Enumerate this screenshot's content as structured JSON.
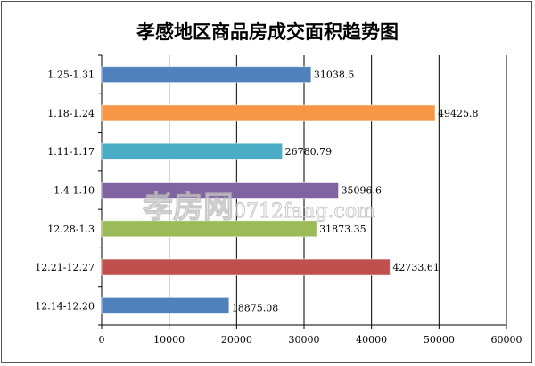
{
  "chart_data": {
    "type": "bar",
    "orientation": "horizontal",
    "title": "孝感地区商品房成交面积趋势图",
    "categories": [
      "1.25-1.31",
      "1.18-1.24",
      "1.11-1.17",
      "1.4-1.10",
      "12.28-1.3",
      "12.21-12.27",
      "12.14-12.20"
    ],
    "values": [
      31038.5,
      49425.8,
      26780.79,
      35096.6,
      31873.35,
      42733.61,
      18875.08
    ],
    "value_labels": [
      "31038.5",
      "49425.8",
      "26780.79",
      "35096.6",
      "31873.35",
      "42733.61",
      "18875.08"
    ],
    "colors": [
      "#4f81bd",
      "#f79646",
      "#4bacc6",
      "#8064a2",
      "#9bbb59",
      "#c0504d",
      "#4f81bd"
    ],
    "xticks": [
      "0",
      "10000",
      "20000",
      "30000",
      "40000",
      "50000",
      "60000"
    ],
    "xlim": [
      0,
      60000
    ],
    "xlabel": "",
    "ylabel": "",
    "grid": true,
    "legend": "none"
  },
  "watermark": {
    "cn": "孝房网",
    "url": "0712fang.com"
  }
}
